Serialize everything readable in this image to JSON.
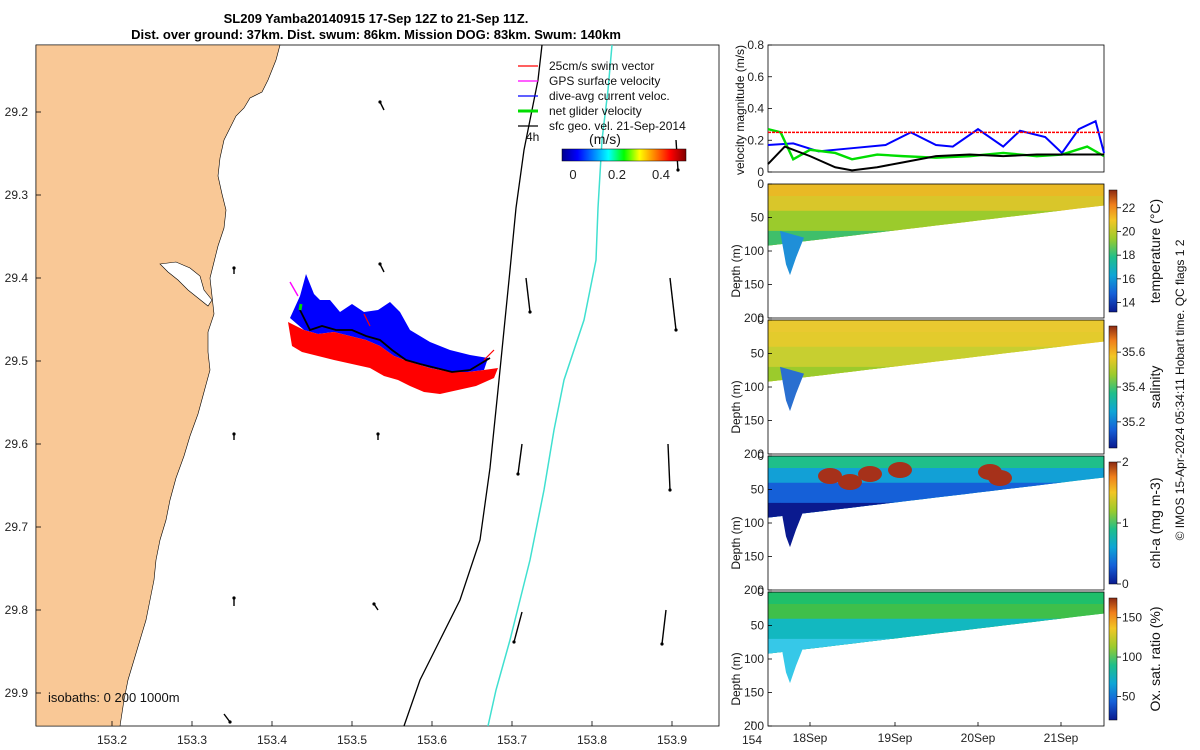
{
  "figure": {
    "title_line1": "SL209 Yamba20140915 17-Sep 12Z to 21-Sep 11Z.",
    "title_line2": "Dist. over ground: 37km. Dist. swum: 86km. Mission DOG: 83km. Swum: 140km",
    "footer": "© IMOS 15-Apr-2024 05:34:11 Hobart time. QC flags 1  2"
  },
  "colors": {
    "land": "#f9c896",
    "ocean": "#ffffff",
    "swim_vector": "#ff0000",
    "gps_surface": "#ff00ff",
    "dive_avg": "#0000ff",
    "net_glider": "#00dd00",
    "sfc_geo": "#000000",
    "isobath_0": "#000000",
    "isobath_1000": "#40e0d0"
  },
  "map": {
    "legend": [
      {
        "label": "25cm/s swim vector",
        "color": "#ff0000"
      },
      {
        "label": "GPS surface velocity",
        "color": "#ff00ff"
      },
      {
        "label": "dive-avg current veloc.",
        "color": "#0000ff"
      },
      {
        "label": "net glider velocity",
        "color": "#00dd00"
      },
      {
        "label": "sfc geo. vel. 21-Sep-2014",
        "color": "#000000"
      }
    ],
    "time_label": "4h",
    "colorbar_unit": "(m/s)",
    "colorbar_ticks": [
      "0",
      "0.2",
      "0.4"
    ],
    "isobath_label": "isobaths: 0   200  1000m",
    "x_ticks": [
      "153.2",
      "153.3",
      "153.4",
      "153.5",
      "153.6",
      "153.7",
      "153.8",
      "153.9",
      "154"
    ],
    "y_ticks": [
      "29.2",
      "29.3",
      "29.4",
      "29.5",
      "29.6",
      "29.7",
      "29.8",
      "29.9"
    ]
  },
  "chart_data": [
    {
      "type": "line",
      "ylabel": "velocity magnitude (m/s)",
      "ylim": [
        0,
        0.8
      ],
      "y_ticks": [
        "0",
        "0.2",
        "0.4",
        "0.6",
        "0.8"
      ],
      "x_range_days": [
        "17-Sep 12Z",
        "21-Sep 11Z"
      ],
      "series": [
        {
          "name": "dive-avg current veloc.",
          "color": "#0000ff",
          "x": [
            0,
            0.3,
            0.6,
            1,
            1.4,
            1.7,
            2.0,
            2.2,
            2.5,
            2.8,
            3.0,
            3.3,
            3.5,
            3.7,
            3.9,
            4.0
          ],
          "values": [
            0.17,
            0.18,
            0.13,
            0.15,
            0.17,
            0.25,
            0.17,
            0.16,
            0.27,
            0.16,
            0.26,
            0.22,
            0.12,
            0.27,
            0.32,
            0.12
          ]
        },
        {
          "name": "net glider velocity",
          "color": "#00dd00",
          "x": [
            0,
            0.15,
            0.3,
            0.5,
            0.8,
            1.0,
            1.3,
            1.6,
            2.0,
            2.4,
            2.8,
            3.2,
            3.5,
            3.8,
            4.0
          ],
          "values": [
            0.27,
            0.25,
            0.08,
            0.14,
            0.12,
            0.08,
            0.11,
            0.1,
            0.09,
            0.1,
            0.12,
            0.1,
            0.11,
            0.16,
            0.1
          ]
        },
        {
          "name": "sfc geo. vel.",
          "color": "#000000",
          "x": [
            0,
            0.2,
            0.5,
            0.8,
            1.0,
            1.3,
            1.6,
            2.0,
            2.4,
            2.8,
            3.2,
            3.6,
            4.0
          ],
          "values": [
            0.05,
            0.16,
            0.1,
            0.03,
            0.01,
            0.03,
            0.06,
            0.1,
            0.11,
            0.1,
            0.11,
            0.11,
            0.11
          ]
        },
        {
          "name": "25cm/s reference",
          "color": "#ff0000",
          "x": [
            0,
            4.0
          ],
          "values": [
            0.25,
            0.25
          ]
        }
      ]
    },
    {
      "type": "heatmap",
      "ylabel": "Depth (m)",
      "colorbar_label": "temperature (°C)",
      "colorbar_ticks": [
        "22",
        "20",
        "18",
        "16",
        "14"
      ],
      "clim": [
        13.2,
        23.5
      ],
      "y_ticks": [
        "0",
        "50",
        "100",
        "150",
        "200"
      ],
      "ylim": [
        0,
        200
      ]
    },
    {
      "type": "heatmap",
      "ylabel": "Depth (m)",
      "colorbar_label": "salinity",
      "colorbar_ticks": [
        "35.6",
        "35.4",
        "35.2"
      ],
      "clim": [
        35.05,
        35.75
      ],
      "y_ticks": [
        "0",
        "50",
        "100",
        "150",
        "200"
      ],
      "ylim": [
        0,
        200
      ]
    },
    {
      "type": "heatmap",
      "ylabel": "Depth (m)",
      "colorbar_label": "chl-a (mg m-3)",
      "colorbar_ticks": [
        "2",
        "1",
        "0"
      ],
      "clim": [
        0,
        2
      ],
      "y_ticks": [
        "0",
        "50",
        "100",
        "150",
        "200"
      ],
      "ylim": [
        0,
        200
      ]
    },
    {
      "type": "heatmap",
      "ylabel": "Depth (m)",
      "colorbar_label": "Ox. sat. ratio (%)",
      "colorbar_ticks": [
        "150",
        "100",
        "50"
      ],
      "clim": [
        20,
        175
      ],
      "y_ticks": [
        "0",
        "50",
        "100",
        "150",
        "200"
      ],
      "ylim": [
        0,
        200
      ]
    }
  ],
  "time_axis": {
    "ticks": [
      "18Sep",
      "19Sep",
      "20Sep",
      "21Sep"
    ]
  }
}
